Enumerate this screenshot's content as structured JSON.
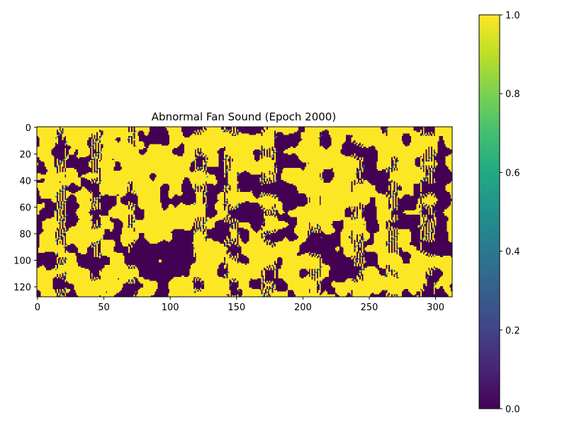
{
  "chart_data": {
    "type": "heatmap",
    "title": "Abnormal Fan Sound (Epoch 2000)",
    "xlabel": "",
    "ylabel": "",
    "x_range": [
      0,
      313
    ],
    "y_range": [
      0,
      128
    ],
    "x_ticks": [
      0,
      50,
      100,
      150,
      200,
      250,
      300
    ],
    "y_ticks": [
      0,
      20,
      40,
      60,
      80,
      100,
      120
    ],
    "value_range": [
      0.0,
      1.0
    ],
    "colormap": "viridis",
    "colorbar_ticks": [
      "0.0",
      "0.2",
      "0.4",
      "0.6",
      "0.8",
      "1.0"
    ],
    "colorbar_tick_values": [
      0.0,
      0.2,
      0.4,
      0.6,
      0.8,
      1.0
    ],
    "grid": false,
    "pattern": "binary noise (mostly 0 or 1), approximately 60% high values; stripe-like texture at several vertical bands"
  },
  "colors": {
    "low": "#440154",
    "high": "#fde725"
  }
}
